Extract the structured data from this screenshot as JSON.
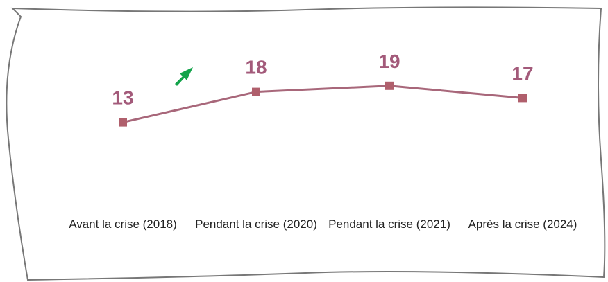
{
  "chart_data": {
    "type": "line",
    "categories": [
      "Avant la crise (2018)",
      "Pendant la crise (2020)",
      "Pendant la crise (2021)",
      "Après la crise (2024)"
    ],
    "series": [
      {
        "color": "#a8677a",
        "values": [
          13,
          18,
          19,
          17
        ]
      }
    ],
    "label_color": "#a35a7a",
    "ylim": [
      0,
      30
    ]
  }
}
